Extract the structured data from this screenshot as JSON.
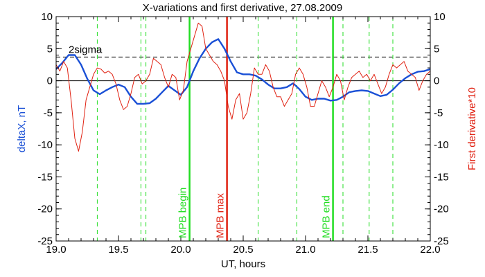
{
  "chart_data": {
    "type": "line",
    "title": "X-variations and first derivative, 27.08.2009",
    "xlabel": "UT, hours",
    "ylabel_left": "deltaX, nT",
    "ylabel_right": "First derivative*10",
    "xlim": [
      19.0,
      22.0
    ],
    "ylim": [
      -25,
      10
    ],
    "x_ticks": [
      19.0,
      19.5,
      20.0,
      20.5,
      21.0,
      21.5,
      22.0
    ],
    "x_tick_labels": [
      "19.0",
      "19.5",
      "20.0",
      "20.5",
      "21.0",
      "21.5",
      "22.0"
    ],
    "y_ticks": [
      10,
      5,
      0,
      -5,
      -10,
      -15,
      -20,
      -25
    ],
    "y_tick_labels": [
      "10",
      "5",
      "0",
      "-5",
      "-10",
      "-15",
      "-20",
      "-25"
    ],
    "sigma_level": 3.7,
    "sigma_label": "2sigma",
    "colors": {
      "deltaX": "#1a50d6",
      "derivative": "#e02010",
      "markers": "#22dd22",
      "mpb_max": "#e02010",
      "text": "#000000"
    },
    "series": [
      {
        "key": "deltaX",
        "x": [
          19.0,
          19.05,
          19.1,
          19.15,
          19.2,
          19.25,
          19.3,
          19.35,
          19.4,
          19.45,
          19.5,
          19.55,
          19.6,
          19.65,
          19.7,
          19.75,
          19.8,
          19.85,
          19.9,
          19.95,
          20.0,
          20.05,
          20.1,
          20.15,
          20.2,
          20.25,
          20.3,
          20.35,
          20.4,
          20.45,
          20.5,
          20.55,
          20.6,
          20.65,
          20.7,
          20.75,
          20.8,
          20.85,
          20.9,
          20.95,
          21.0,
          21.05,
          21.1,
          21.15,
          21.2,
          21.25,
          21.3,
          21.35,
          21.4,
          21.45,
          21.5,
          21.55,
          21.6,
          21.65,
          21.7,
          21.75,
          21.8,
          21.85,
          21.9,
          21.95,
          22.0
        ],
        "values": [
          1.8,
          2.8,
          4.0,
          4.0,
          2.5,
          0.3,
          -1.5,
          -2.1,
          -1.5,
          -1.0,
          -0.6,
          -1.0,
          -2.5,
          -3.6,
          -3.6,
          -3.5,
          -2.8,
          -1.8,
          -0.8,
          -1.5,
          -2.2,
          -1.0,
          1.5,
          3.5,
          5.0,
          6.0,
          6.5,
          5.0,
          3.0,
          1.3,
          1.0,
          1.0,
          0.8,
          0.2,
          -0.6,
          -1.2,
          -1.2,
          -1.0,
          -0.4,
          -1.3,
          -2.5,
          -3.0,
          -2.8,
          -2.8,
          -3.1,
          -3.0,
          -2.5,
          -1.8,
          -1.6,
          -1.5,
          -1.6,
          -2.0,
          -2.4,
          -2.2,
          -1.4,
          -0.4,
          0.4,
          1.0,
          1.4,
          1.5,
          1.8
        ]
      },
      {
        "key": "derivative",
        "x": [
          19.0,
          19.03,
          19.06,
          19.09,
          19.12,
          19.15,
          19.18,
          19.21,
          19.24,
          19.27,
          19.3,
          19.33,
          19.36,
          19.39,
          19.42,
          19.45,
          19.48,
          19.51,
          19.54,
          19.57,
          19.6,
          19.63,
          19.66,
          19.69,
          19.72,
          19.75,
          19.78,
          19.81,
          19.84,
          19.87,
          19.9,
          19.93,
          19.96,
          19.99,
          20.02,
          20.05,
          20.08,
          20.11,
          20.14,
          20.17,
          20.2,
          20.23,
          20.26,
          20.29,
          20.32,
          20.35,
          20.38,
          20.41,
          20.44,
          20.47,
          20.5,
          20.53,
          20.56,
          20.59,
          20.62,
          20.65,
          20.68,
          20.71,
          20.74,
          20.77,
          20.8,
          20.83,
          20.86,
          20.89,
          20.92,
          20.95,
          20.98,
          21.01,
          21.04,
          21.07,
          21.1,
          21.13,
          21.16,
          21.19,
          21.22,
          21.25,
          21.28,
          21.31,
          21.34,
          21.37,
          21.4,
          21.43,
          21.46,
          21.49,
          21.52,
          21.55,
          21.58,
          21.61,
          21.64,
          21.67,
          21.7,
          21.73,
          21.76,
          21.79,
          21.82,
          21.85,
          21.88,
          21.91,
          21.94,
          21.97,
          22.0
        ],
        "values": [
          2.5,
          1.5,
          3.0,
          2.0,
          -3.0,
          -9.0,
          -11.0,
          -8.0,
          -3.0,
          -1.0,
          1.0,
          2.0,
          1.8,
          1.2,
          1.5,
          1.0,
          -0.5,
          -3.0,
          -4.5,
          -4.0,
          -2.0,
          0.5,
          1.0,
          -0.5,
          0.0,
          1.0,
          3.5,
          3.0,
          2.5,
          0.5,
          -1.0,
          1.0,
          0.5,
          -3.0,
          -1.5,
          3.0,
          5.0,
          7.0,
          9.0,
          8.5,
          5.0,
          4.0,
          3.0,
          2.5,
          1.5,
          0.0,
          -4.0,
          -6.0,
          -3.0,
          -2.0,
          -6.0,
          -5.0,
          -2.0,
          2.0,
          1.0,
          1.0,
          2.5,
          1.5,
          -1.0,
          -2.5,
          -2.5,
          -4.0,
          -3.0,
          -2.0,
          1.0,
          2.0,
          1.0,
          -1.0,
          -4.0,
          -4.0,
          -2.0,
          0.0,
          -1.0,
          -2.5,
          -1.0,
          1.0,
          0.0,
          -3.0,
          -1.0,
          0.5,
          1.0,
          1.5,
          0.5,
          1.0,
          0.0,
          1.0,
          -0.5,
          -2.0,
          -1.0,
          1.0,
          2.5,
          2.0,
          2.5,
          3.0,
          1.5,
          1.0,
          0.5,
          -1.5,
          0.0,
          1.0,
          1.5
        ]
      }
    ],
    "dashed_markers": [
      19.33,
      19.68,
      19.72,
      20.62,
      20.93,
      21.3,
      21.51,
      21.7
    ],
    "mpb_begin": {
      "x": 20.07,
      "label": "MPB begin"
    },
    "mpb_max": {
      "x": 20.37,
      "label": "MPB max"
    },
    "mpb_end": {
      "x": 21.22,
      "label": "MPB end"
    }
  }
}
